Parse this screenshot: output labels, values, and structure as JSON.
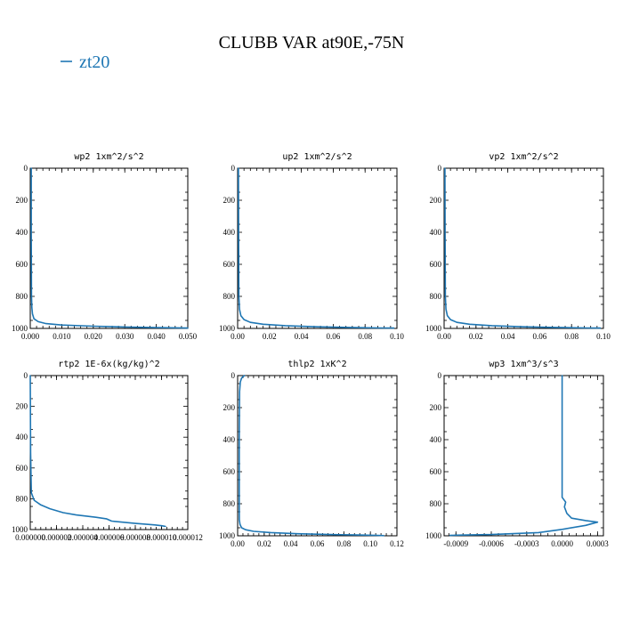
{
  "figure": {
    "title": "CLUBB VAR at90E,-75N",
    "legend": {
      "label": "zt20",
      "color": "#1f77b4"
    }
  },
  "chart_data": [
    {
      "type": "line",
      "title": "wp2   1xm^2/s^2",
      "xlim": [
        0,
        0.05
      ],
      "ylim": [
        1000,
        0
      ],
      "xticks": [
        "0.000",
        "0.010",
        "0.020",
        "0.030",
        "0.040",
        "0.050"
      ],
      "yticks": [
        "0",
        "200",
        "400",
        "600",
        "800",
        "1000"
      ],
      "series": [
        {
          "x": [
            0.0003,
            0.0003,
            0.0004,
            0.0005,
            0.0007,
            0.0012,
            0.0025,
            0.005,
            0.01,
            0.02,
            0.03,
            0.04,
            0.05
          ],
          "y": [
            0,
            400,
            800,
            870,
            910,
            940,
            958,
            970,
            979,
            986,
            991,
            995,
            998
          ]
        }
      ]
    },
    {
      "type": "line",
      "title": "up2   1xm^2/s^2",
      "xlim": [
        0,
        0.1
      ],
      "ylim": [
        1000,
        0
      ],
      "xticks": [
        "0.00",
        "0.02",
        "0.04",
        "0.06",
        "0.08",
        "0.10"
      ],
      "yticks": [
        "0",
        "200",
        "400",
        "600",
        "800",
        "1000"
      ],
      "series": [
        {
          "x": [
            0.0005,
            0.0006,
            0.0008,
            0.0012,
            0.002,
            0.004,
            0.008,
            0.016,
            0.03,
            0.05,
            0.07,
            0.09,
            0.098
          ],
          "y": [
            0,
            400,
            800,
            880,
            920,
            945,
            962,
            974,
            983,
            990,
            994,
            997,
            998
          ]
        }
      ]
    },
    {
      "type": "line",
      "title": "vp2   1xm^2/s^2",
      "xlim": [
        0,
        0.1
      ],
      "ylim": [
        1000,
        0
      ],
      "xticks": [
        "0.00",
        "0.02",
        "0.04",
        "0.06",
        "0.08",
        "0.10"
      ],
      "yticks": [
        "0",
        "200",
        "400",
        "600",
        "800",
        "1000"
      ],
      "series": [
        {
          "x": [
            0.0005,
            0.0006,
            0.0008,
            0.0012,
            0.002,
            0.004,
            0.008,
            0.016,
            0.03,
            0.05,
            0.07,
            0.09,
            0.098
          ],
          "y": [
            0,
            400,
            800,
            880,
            920,
            945,
            962,
            974,
            983,
            990,
            994,
            997,
            998
          ]
        }
      ]
    },
    {
      "type": "line",
      "title": "rtp2   1E-6x(kg/kg)^2",
      "xlim": [
        0,
        1.2e-05
      ],
      "ylim": [
        1000,
        0
      ],
      "xticks": [
        "0.000000",
        "0.000002",
        "0.000004",
        "0.000006",
        "0.000008",
        "0.000010",
        "0.000012"
      ],
      "yticks": [
        "0",
        "200",
        "400",
        "600",
        "800",
        "1000"
      ],
      "series": [
        {
          "x": [
            0,
            3e-08,
            8e-08,
            3e-07,
            8e-07,
            1.5e-06,
            2.5e-06,
            3.5e-06,
            5e-06,
            5.8e-06,
            6.2e-06,
            8e-06,
            9.5e-06,
            1e-05,
            1.02e-05,
            1.03e-05
          ],
          "y": [
            0,
            500,
            760,
            810,
            840,
            865,
            890,
            905,
            920,
            930,
            945,
            960,
            970,
            975,
            978,
            980
          ]
        }
      ]
    },
    {
      "type": "line",
      "title": "thlp2   1xK^2",
      "xlim": [
        0,
        0.12
      ],
      "ylim": [
        1000,
        0
      ],
      "xticks": [
        "0.00",
        "0.02",
        "0.04",
        "0.06",
        "0.08",
        "0.10",
        "0.12"
      ],
      "yticks": [
        "0",
        "200",
        "400",
        "600",
        "800",
        "1000"
      ],
      "series": [
        {
          "x": [
            0.005,
            0.003,
            0.002,
            0.0015,
            0.0012,
            0.0012,
            0.0013,
            0.0018,
            0.003,
            0.006,
            0.012,
            0.025,
            0.045,
            0.07,
            0.09,
            0.105,
            0.11
          ],
          "y": [
            0,
            15,
            40,
            100,
            400,
            800,
            900,
            930,
            950,
            962,
            972,
            980,
            987,
            992,
            995,
            997,
            999
          ]
        }
      ]
    },
    {
      "type": "line",
      "title": "wp3   1xm^3/s^3",
      "xlim": [
        -0.001,
        0.00035
      ],
      "ylim": [
        1000,
        0
      ],
      "xticks": [
        "-0.0009",
        "-0.0006",
        "-0.0003",
        "0.0000",
        "0.0003"
      ],
      "xtick_values": [
        -0.0009,
        -0.0006,
        -0.0003,
        0.0,
        0.0003
      ],
      "yticks": [
        "0",
        "200",
        "400",
        "600",
        "800",
        "1000"
      ],
      "series": [
        {
          "x": [
            0.0,
            0.0,
            0.0,
            3e-05,
            2e-05,
            4e-05,
            8e-05,
            0.0002,
            0.0003,
            0.0002,
            0.0,
            -0.0002,
            -0.0006,
            -0.0009,
            -0.00095
          ],
          "y": [
            0,
            400,
            760,
            790,
            820,
            860,
            890,
            905,
            915,
            935,
            960,
            980,
            992,
            996,
            998
          ]
        }
      ]
    }
  ]
}
